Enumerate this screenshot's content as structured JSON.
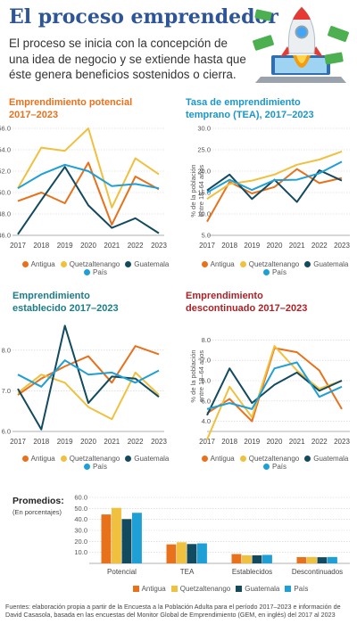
{
  "title": "El proceso emprendedor",
  "intro": "El proceso se inicia con la concepción de una idea de negocio y se extiende hasta que éste genera beneficios sostenidos o cierra.",
  "colors": {
    "Antigua": "#e8711c",
    "Quetzaltenango": "#f0c03f",
    "Guatemala": "#124a60",
    "País": "#1e9fd6",
    "title_blue": "#2d5597",
    "orange_title": "#e8711c",
    "teal_title": "#1a7d8a",
    "red_title": "#b11f24",
    "cyan_title": "#1c96c8",
    "grid": "#cfcfcf"
  },
  "legend_labels": [
    "Antigua",
    "Quetzaltenango",
    "Guatemala",
    "País"
  ],
  "icons": [
    "rocket-icon",
    "money-icon",
    "laptop-icon"
  ],
  "charts": {
    "potencial": {
      "title_line1": "Emprendimiento potencial",
      "title_line2": "2017–2023",
      "ylabel_line1": "",
      "ylabel_line2": ""
    },
    "tea": {
      "title_line1": "Tasa de emprendimiento",
      "title_line2": "temprano (TEA), 2017–2023",
      "ylabel_line1": "% de la población",
      "ylabel_line2": "entre 18–64 años"
    },
    "establecido": {
      "title_line1": "Emprendimiento",
      "title_line2": "establecido 2017–2023",
      "ylabel_line1": "",
      "ylabel_line2": ""
    },
    "descontinuado": {
      "title_line1": "Emprendimiento",
      "title_line2": "descontinuado 2017–2023",
      "ylabel_line1": "% de la población",
      "ylabel_line2": "entre 18–64 años"
    }
  },
  "promedios": {
    "title": "Promedios:",
    "subtitle": "(En porcentajes)"
  },
  "footer": "Fuentes: elaboración propia a partir de la Encuesta a la Población Adulta para el período 2017–2023 e información de David Casasola, basada en las encuestas del Monitor Global de Emprendimiento (GEM, en inglés) del 2017 al 2023",
  "chart_data": [
    {
      "type": "line",
      "title": "Emprendimiento potencial 2017–2023",
      "x": [
        "2017",
        "2018",
        "2019",
        "2020",
        "2021",
        "2022",
        "2023"
      ],
      "y_ticks": [
        "56.0",
        "54.0",
        "52.0",
        "50.0",
        "48.0",
        "46.0"
      ],
      "ylim": [
        46,
        56
      ],
      "grid": true,
      "series": [
        {
          "name": "Antigua",
          "values": [
            49.2,
            50.0,
            49.0,
            52.8,
            47.0,
            51.5,
            50.3
          ]
        },
        {
          "name": "Quetzaltenango",
          "values": [
            50.4,
            54.2,
            53.9,
            56.0,
            48.6,
            53.2,
            51.7
          ]
        },
        {
          "name": "Guatemala",
          "values": [
            46.1,
            49.3,
            52.4,
            48.8,
            46.7,
            47.6,
            46.2
          ]
        },
        {
          "name": "País",
          "values": [
            50.4,
            51.7,
            52.6,
            52.0,
            50.6,
            50.8,
            50.4
          ]
        }
      ]
    },
    {
      "type": "line",
      "title": "Tasa de emprendimiento temprano (TEA), 2017–2023",
      "x": [
        "2017",
        "2018",
        "2019",
        "2020",
        "2021",
        "2022",
        "2023"
      ],
      "y_ticks": [
        "30.0",
        "25.0",
        "20.0",
        "15.0",
        "10.0",
        "5.0"
      ],
      "ylim": [
        5,
        30
      ],
      "ylabel": "% de la población entre 18–64 años",
      "grid": true,
      "series": [
        {
          "name": "Antigua",
          "values": [
            8.2,
            17.5,
            14.8,
            16.3,
            20.5,
            17.2,
            18.4
          ]
        },
        {
          "name": "Quetzaltenango",
          "values": [
            13.5,
            17.0,
            17.8,
            19.2,
            21.5,
            22.7,
            24.6
          ]
        },
        {
          "name": "Guatemala",
          "values": [
            15.5,
            19.2,
            13.5,
            18.0,
            12.8,
            20.2,
            17.8
          ]
        },
        {
          "name": "País",
          "values": [
            15.0,
            18.0,
            15.6,
            17.9,
            18.0,
            19.5,
            22.2
          ]
        }
      ]
    },
    {
      "type": "line",
      "title": "Emprendimiento establecido 2017–2023",
      "x": [
        "2017",
        "2018",
        "2019",
        "2020",
        "2021",
        "2022",
        "2023"
      ],
      "y_ticks": [
        "8.0",
        "7.0",
        "6.0"
      ],
      "ylim": [
        6,
        8.5
      ],
      "grid": true,
      "series": [
        {
          "name": "Antigua",
          "values": [
            6.9,
            7.3,
            7.6,
            7.85,
            7.2,
            8.1,
            7.9
          ]
        },
        {
          "name": "Quetzaltenango",
          "values": [
            6.95,
            7.4,
            7.2,
            6.6,
            6.3,
            7.45,
            6.9
          ]
        },
        {
          "name": "Guatemala",
          "values": [
            7.05,
            6.05,
            8.6,
            6.7,
            7.35,
            7.3,
            6.85
          ]
        },
        {
          "name": "País",
          "values": [
            7.4,
            7.1,
            7.75,
            7.4,
            7.45,
            7.2,
            7.5
          ]
        }
      ]
    },
    {
      "type": "line",
      "title": "Emprendimiento descontinuado 2017–2023",
      "x": [
        "2017",
        "2018",
        "2019",
        "2020",
        "2021",
        "2022",
        "2023"
      ],
      "y_ticks": [
        "8.0",
        "7.0",
        "6.0",
        "5.0",
        "4.0"
      ],
      "ylim": [
        3.5,
        8.5
      ],
      "ylabel": "% de la población entre 18–64 años",
      "grid": true,
      "series": [
        {
          "name": "Antigua",
          "values": [
            4.4,
            5.1,
            4.0,
            7.6,
            7.4,
            6.5,
            4.6
          ]
        },
        {
          "name": "Quetzaltenango",
          "values": [
            3.1,
            5.7,
            4.2,
            7.7,
            6.5,
            5.6,
            6.0
          ]
        },
        {
          "name": "Guatemala",
          "values": [
            4.3,
            6.6,
            4.9,
            5.8,
            6.4,
            5.5,
            6.0
          ]
        },
        {
          "name": "País",
          "values": [
            4.6,
            4.9,
            4.6,
            6.6,
            6.9,
            5.2,
            5.7
          ]
        }
      ]
    },
    {
      "type": "bar",
      "title": "Promedios:",
      "subtitle": "(En porcentajes)",
      "categories": [
        "Potencial",
        "TEA",
        "Establecidos",
        "Descontinuados"
      ],
      "y_ticks": [
        "60.0",
        "50.0",
        "40.0",
        "30.0",
        "20.0",
        "10.0"
      ],
      "ylim": [
        0,
        60
      ],
      "grid": true,
      "series": [
        {
          "name": "Antigua",
          "values": [
            44.5,
            17.3,
            8.5,
            5.7
          ]
        },
        {
          "name": "Quetzaltenango",
          "values": [
            50.5,
            19.2,
            7.3,
            5.8
          ]
        },
        {
          "name": "Guatemala",
          "values": [
            40.3,
            17.6,
            7.3,
            5.6
          ]
        },
        {
          "name": "País",
          "values": [
            46.0,
            18.2,
            7.7,
            5.8
          ]
        }
      ]
    }
  ]
}
